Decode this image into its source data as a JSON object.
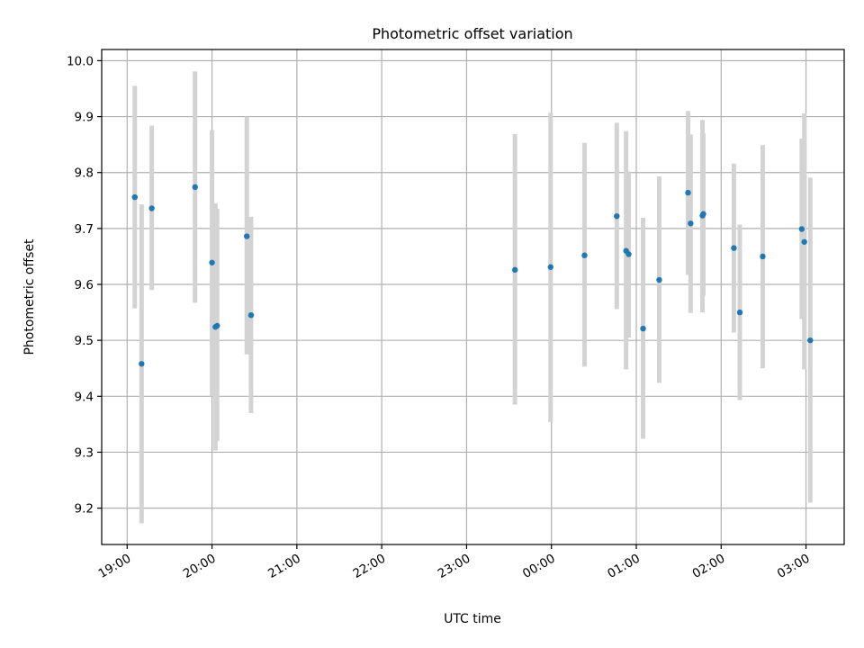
{
  "chart_data": {
    "type": "scatter",
    "title": "Photometric offset variation",
    "xlabel": "UTC time",
    "ylabel": "Photometric offset",
    "x_unit": "hours since 19:00 UTC",
    "xlim": [
      -0.3,
      8.45
    ],
    "ylim": [
      9.135,
      10.02
    ],
    "grid": true,
    "x_ticks": [
      {
        "value": 0,
        "label": "19:00"
      },
      {
        "value": 1,
        "label": "20:00"
      },
      {
        "value": 2,
        "label": "21:00"
      },
      {
        "value": 3,
        "label": "22:00"
      },
      {
        "value": 4,
        "label": "23:00"
      },
      {
        "value": 5,
        "label": "00:00"
      },
      {
        "value": 6,
        "label": "01:00"
      },
      {
        "value": 7,
        "label": "02:00"
      },
      {
        "value": 8,
        "label": "03:00"
      }
    ],
    "y_ticks": [
      {
        "value": 9.2,
        "label": "9.2"
      },
      {
        "value": 9.3,
        "label": "9.3"
      },
      {
        "value": 9.4,
        "label": "9.4"
      },
      {
        "value": 9.5,
        "label": "9.5"
      },
      {
        "value": 9.6,
        "label": "9.6"
      },
      {
        "value": 9.7,
        "label": "9.7"
      },
      {
        "value": 9.8,
        "label": "9.8"
      },
      {
        "value": 9.9,
        "label": "9.9"
      },
      {
        "value": 10.0,
        "label": "10.0"
      }
    ],
    "colors": {
      "marker": "#1f77b4",
      "errorbar": "#d3d3d3",
      "grid": "#b0b0b0"
    },
    "series": [
      {
        "name": "photometric offset",
        "points": [
          {
            "x": 0.09,
            "y": 9.756,
            "lo": 9.557,
            "hi": 9.955
          },
          {
            "x": 0.17,
            "y": 9.458,
            "lo": 9.173,
            "hi": 9.743
          },
          {
            "x": 0.29,
            "y": 9.736,
            "lo": 9.59,
            "hi": 9.884
          },
          {
            "x": 0.8,
            "y": 9.774,
            "lo": 9.567,
            "hi": 9.981
          },
          {
            "x": 1.0,
            "y": 9.639,
            "lo": 9.4,
            "hi": 9.876
          },
          {
            "x": 1.04,
            "y": 9.524,
            "lo": 9.303,
            "hi": 9.745
          },
          {
            "x": 1.06,
            "y": 9.526,
            "lo": 9.32,
            "hi": 9.735
          },
          {
            "x": 1.41,
            "y": 9.686,
            "lo": 9.475,
            "hi": 9.9
          },
          {
            "x": 1.46,
            "y": 9.545,
            "lo": 9.37,
            "hi": 9.721
          },
          {
            "x": 4.57,
            "y": 9.626,
            "lo": 9.385,
            "hi": 9.869
          },
          {
            "x": 4.99,
            "y": 9.631,
            "lo": 9.354,
            "hi": 9.907
          },
          {
            "x": 5.39,
            "y": 9.652,
            "lo": 9.453,
            "hi": 9.853
          },
          {
            "x": 5.77,
            "y": 9.722,
            "lo": 9.556,
            "hi": 9.889
          },
          {
            "x": 5.88,
            "y": 9.66,
            "lo": 9.448,
            "hi": 9.874
          },
          {
            "x": 5.91,
            "y": 9.654,
            "lo": 9.505,
            "hi": 9.802
          },
          {
            "x": 6.08,
            "y": 9.521,
            "lo": 9.324,
            "hi": 9.719
          },
          {
            "x": 6.27,
            "y": 9.608,
            "lo": 9.424,
            "hi": 9.793
          },
          {
            "x": 6.61,
            "y": 9.764,
            "lo": 9.617,
            "hi": 9.91
          },
          {
            "x": 6.64,
            "y": 9.709,
            "lo": 9.549,
            "hi": 9.868
          },
          {
            "x": 6.78,
            "y": 9.723,
            "lo": 9.55,
            "hi": 9.894
          },
          {
            "x": 6.79,
            "y": 9.726,
            "lo": 9.58,
            "hi": 9.87
          },
          {
            "x": 7.15,
            "y": 9.665,
            "lo": 9.514,
            "hi": 9.816
          },
          {
            "x": 7.22,
            "y": 9.55,
            "lo": 9.393,
            "hi": 9.707
          },
          {
            "x": 7.49,
            "y": 9.65,
            "lo": 9.45,
            "hi": 9.849
          },
          {
            "x": 7.95,
            "y": 9.699,
            "lo": 9.538,
            "hi": 9.861
          },
          {
            "x": 7.98,
            "y": 9.676,
            "lo": 9.448,
            "hi": 9.906
          },
          {
            "x": 8.05,
            "y": 9.5,
            "lo": 9.21,
            "hi": 9.791
          }
        ]
      }
    ]
  }
}
